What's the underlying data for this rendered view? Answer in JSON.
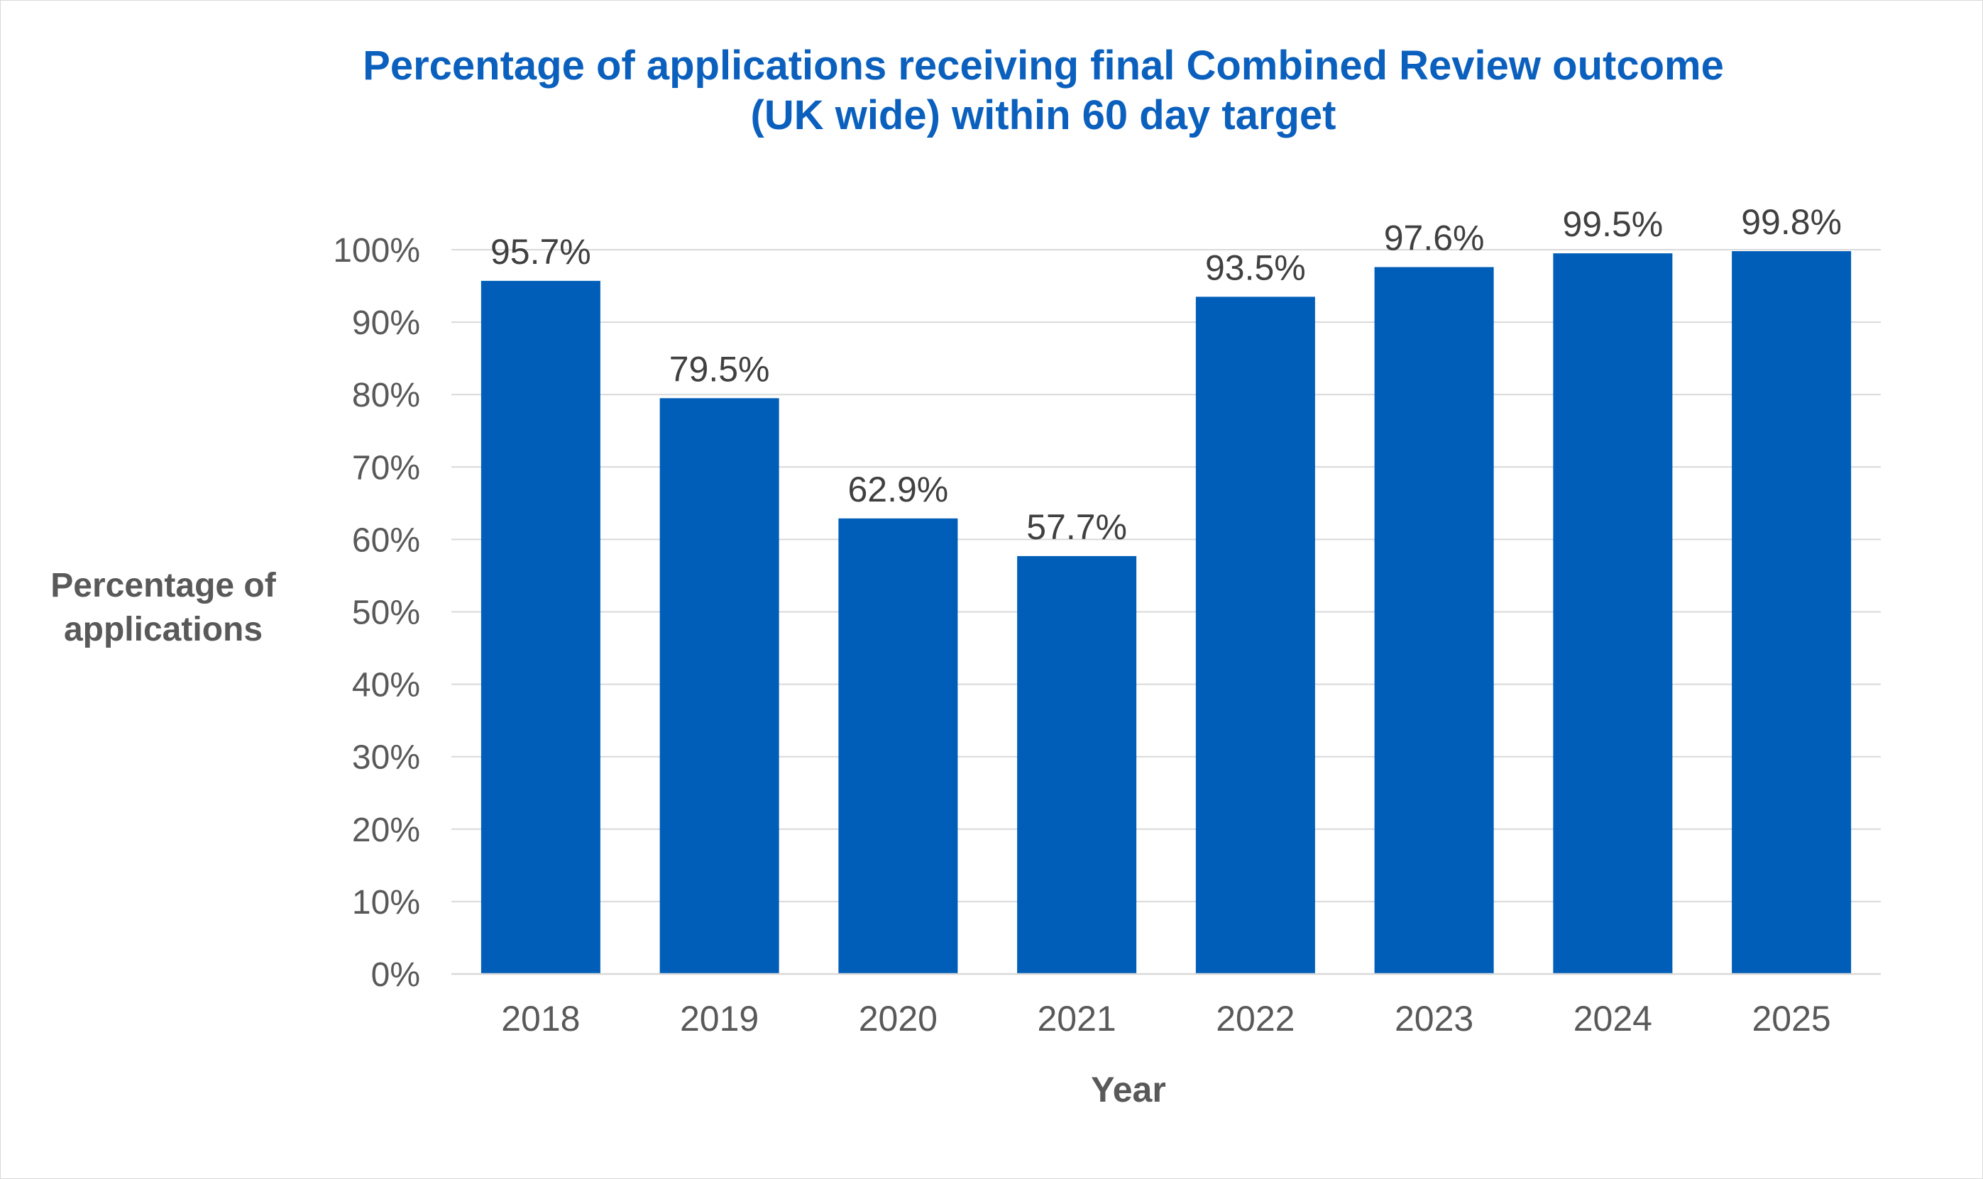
{
  "chart_data": {
    "type": "bar",
    "title_lines": [
      "Percentage of applications receiving final Combined Review outcome",
      "(UK wide) within 60 day target"
    ],
    "xlabel": "Year",
    "ylabel_lines": [
      "Percentage of",
      "applications"
    ],
    "categories": [
      "2018",
      "2019",
      "2020",
      "2021",
      "2022",
      "2023",
      "2024",
      "2025"
    ],
    "values": [
      95.7,
      79.5,
      62.9,
      57.7,
      93.5,
      97.6,
      99.5,
      99.8
    ],
    "data_labels": [
      "95.7%",
      "79.5%",
      "62.9%",
      "57.7%",
      "93.5%",
      "97.6%",
      "99.5%",
      "99.8%"
    ],
    "y_ticks": [
      0,
      10,
      20,
      30,
      40,
      50,
      60,
      70,
      80,
      90,
      100
    ],
    "y_tick_labels": [
      "0%",
      "10%",
      "20%",
      "30%",
      "40%",
      "50%",
      "60%",
      "70%",
      "80%",
      "90%",
      "100%"
    ],
    "ylim": [
      0,
      100
    ],
    "grid": true,
    "legend": false,
    "colors": {
      "bar": "#005eb8",
      "title": "#0b60be",
      "axis_text": "#595959",
      "label_text": "#404040",
      "grid": "#d9d9d9"
    }
  }
}
